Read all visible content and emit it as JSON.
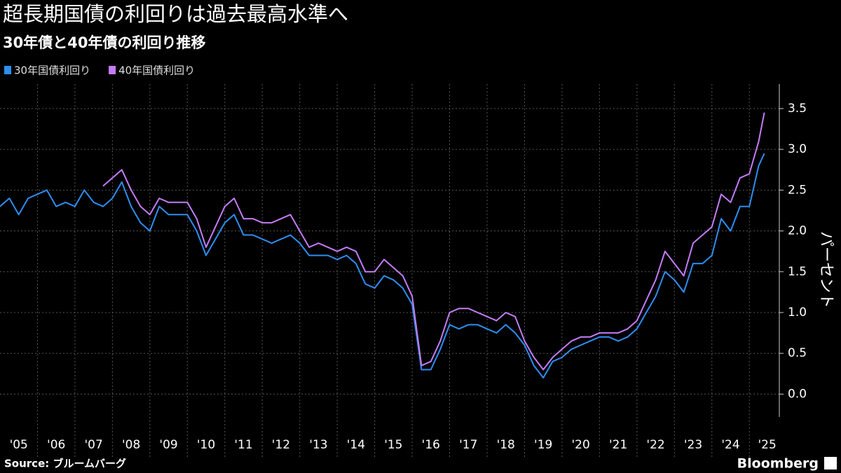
{
  "chart_data": {
    "type": "line",
    "title": "超長期国債の利回りは過去最高水準へ",
    "subtitle": "30年債と40年債の利回り推移",
    "y_label": "パーセント",
    "source": "Source: ブルームバーグ",
    "brand": "Bloomberg",
    "legend": "top-left",
    "grid": true,
    "x": [
      2005,
      2005.25,
      2005.5,
      2005.75,
      2006,
      2006.25,
      2006.5,
      2006.75,
      2007,
      2007.25,
      2007.5,
      2007.75,
      2008,
      2008.25,
      2008.5,
      2008.75,
      2009,
      2009.25,
      2009.5,
      2009.75,
      2010,
      2010.25,
      2010.5,
      2010.75,
      2011,
      2011.25,
      2011.5,
      2011.75,
      2012,
      2012.25,
      2012.5,
      2012.75,
      2013,
      2013.25,
      2013.5,
      2013.75,
      2014,
      2014.25,
      2014.5,
      2014.75,
      2015,
      2015.25,
      2015.5,
      2015.75,
      2016,
      2016.25,
      2016.5,
      2016.75,
      2017,
      2017.25,
      2017.5,
      2017.75,
      2018,
      2018.25,
      2018.5,
      2018.75,
      2019,
      2019.25,
      2019.5,
      2019.75,
      2020,
      2020.25,
      2020.5,
      2020.75,
      2021,
      2021.25,
      2021.5,
      2021.75,
      2022,
      2022.25,
      2022.5,
      2022.75,
      2023,
      2023.25,
      2023.5,
      2023.75,
      2024,
      2024.25,
      2024.5,
      2024.75,
      2025,
      2025.25,
      2025.4
    ],
    "series": [
      {
        "name": "30年国債利回り",
        "color": "#2d8ef0",
        "values": [
          2.3,
          2.4,
          2.2,
          2.4,
          2.45,
          2.5,
          2.3,
          2.35,
          2.3,
          2.5,
          2.35,
          2.3,
          2.4,
          2.6,
          2.3,
          2.1,
          2.0,
          2.3,
          2.2,
          2.2,
          2.2,
          2.0,
          1.7,
          1.9,
          2.1,
          2.2,
          1.95,
          1.95,
          1.9,
          1.85,
          1.9,
          1.95,
          1.85,
          1.7,
          1.7,
          1.7,
          1.65,
          1.7,
          1.6,
          1.35,
          1.3,
          1.45,
          1.4,
          1.3,
          1.1,
          0.3,
          0.3,
          0.55,
          0.85,
          0.8,
          0.85,
          0.85,
          0.8,
          0.75,
          0.85,
          0.75,
          0.6,
          0.35,
          0.2,
          0.4,
          0.45,
          0.55,
          0.6,
          0.65,
          0.7,
          0.7,
          0.65,
          0.7,
          0.8,
          1.0,
          1.2,
          1.5,
          1.4,
          1.25,
          1.6,
          1.6,
          1.7,
          2.15,
          2.0,
          2.3,
          2.3,
          2.8,
          2.95
        ]
      },
      {
        "name": "40年国債利回り",
        "color": "#c47cf5",
        "values": [
          null,
          null,
          null,
          null,
          null,
          null,
          null,
          null,
          null,
          null,
          null,
          2.55,
          2.65,
          2.75,
          2.5,
          2.3,
          2.2,
          2.4,
          2.35,
          2.35,
          2.35,
          2.15,
          1.8,
          2.05,
          2.3,
          2.4,
          2.15,
          2.15,
          2.1,
          2.1,
          2.15,
          2.2,
          2.0,
          1.8,
          1.85,
          1.8,
          1.75,
          1.8,
          1.75,
          1.5,
          1.5,
          1.65,
          1.55,
          1.45,
          1.2,
          0.35,
          0.4,
          0.65,
          1.0,
          1.05,
          1.05,
          1.0,
          0.95,
          0.9,
          1.0,
          0.95,
          0.65,
          0.45,
          0.3,
          0.45,
          0.55,
          0.65,
          0.7,
          0.7,
          0.75,
          0.75,
          0.75,
          0.8,
          0.9,
          1.15,
          1.4,
          1.75,
          1.6,
          1.45,
          1.85,
          1.95,
          2.05,
          2.45,
          2.35,
          2.65,
          2.7,
          3.1,
          3.45
        ]
      }
    ],
    "xlim": [
      2005,
      2025.8
    ],
    "xticks": [
      {
        "value": 2005,
        "label": "'05"
      },
      {
        "value": 2006,
        "label": "'06"
      },
      {
        "value": 2007,
        "label": "'07"
      },
      {
        "value": 2008,
        "label": "'08"
      },
      {
        "value": 2009,
        "label": "'09"
      },
      {
        "value": 2010,
        "label": "'10"
      },
      {
        "value": 2011,
        "label": "'11"
      },
      {
        "value": 2012,
        "label": "'12"
      },
      {
        "value": 2013,
        "label": "'13"
      },
      {
        "value": 2014,
        "label": "'14"
      },
      {
        "value": 2015,
        "label": "'15"
      },
      {
        "value": 2016,
        "label": "'16"
      },
      {
        "value": 2017,
        "label": "'17"
      },
      {
        "value": 2018,
        "label": "'18"
      },
      {
        "value": 2019,
        "label": "'19"
      },
      {
        "value": 2020,
        "label": "'20"
      },
      {
        "value": 2021,
        "label": "'21"
      },
      {
        "value": 2022,
        "label": "'22"
      },
      {
        "value": 2023,
        "label": "'23"
      },
      {
        "value": 2024,
        "label": "'24"
      },
      {
        "value": 2025,
        "label": "'25"
      }
    ],
    "ylim": [
      -0.28,
      3.8
    ],
    "yticks": [
      {
        "value": 0,
        "label": "0.0"
      },
      0.5,
      {
        "value": 1,
        "label": "1.0"
      },
      1.5,
      {
        "value": 2,
        "label": "2.0"
      },
      2.5,
      {
        "value": 3,
        "label": "3.0"
      },
      3.5
    ]
  }
}
